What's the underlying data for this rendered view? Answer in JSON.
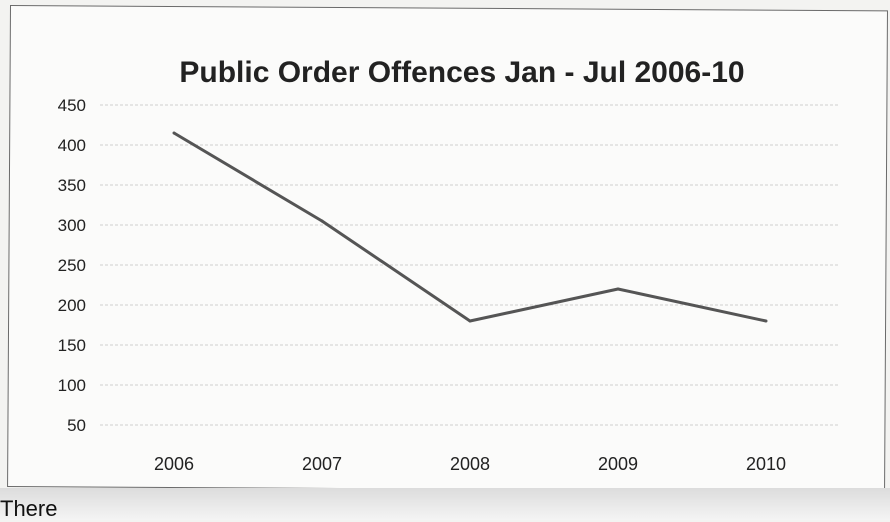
{
  "chart_data": {
    "type": "line",
    "title": "Public Order Offences Jan - Jul 2006-10",
    "categories": [
      "2006",
      "2007",
      "2008",
      "2009",
      "2010"
    ],
    "values": [
      415,
      305,
      180,
      220,
      180
    ],
    "ylim": [
      50,
      450
    ],
    "yticks": [
      "450",
      "400",
      "350",
      "300",
      "250",
      "200",
      "150",
      "100",
      "50"
    ],
    "grid": true,
    "legend": "none",
    "colors": {
      "line": "#555555",
      "grid": "#cfcfcf",
      "text": "#222222"
    }
  },
  "footer": {
    "text": "There"
  }
}
